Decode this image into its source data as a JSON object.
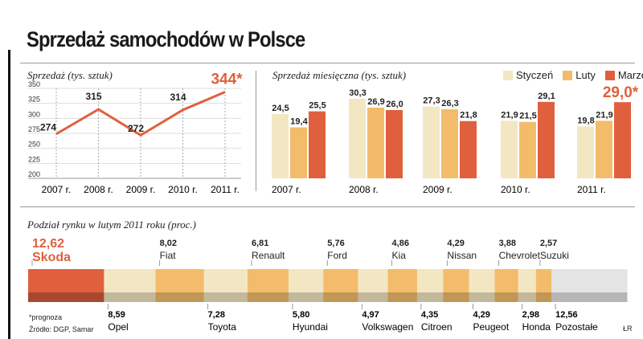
{
  "title": "Sprzedaż samochodów w Polsce",
  "colors": {
    "accent": "#e0603e",
    "orange": "#f3bc6a",
    "cream": "#f3e6c3",
    "gray": "#e4e4e4",
    "dark": "#222222"
  },
  "chart_data": [
    {
      "type": "line",
      "title": "Sprzedaż (tys. sztuk)",
      "categories": [
        "2007 r.",
        "2008 r.",
        "2009 r.",
        "2010 r.",
        "2011 r."
      ],
      "values": [
        274,
        315,
        272,
        314,
        344
      ],
      "labels": [
        "274",
        "315",
        "272",
        "314",
        "344*"
      ],
      "ylim": [
        200,
        350
      ],
      "yticks": [
        200,
        225,
        250,
        275,
        300,
        325,
        350
      ],
      "grid": true
    },
    {
      "type": "bar",
      "title": "Sprzedaż miesięczna (tys. sztuk)",
      "categories": [
        "2007 r.",
        "2008 r.",
        "2009 r.",
        "2010 r.",
        "2011 r."
      ],
      "legend": "top-right",
      "series": [
        {
          "name": "Styczeń",
          "color": "#f3e6c3",
          "values": [
            24.5,
            30.3,
            27.3,
            21.9,
            19.8
          ],
          "labels": [
            "24,5",
            "30,3",
            "27,3",
            "21,9",
            "19,8"
          ]
        },
        {
          "name": "Luty",
          "color": "#f3bc6a",
          "values": [
            19.4,
            26.9,
            26.3,
            21.5,
            21.9
          ],
          "labels": [
            "19,4",
            "26,9",
            "26,3",
            "21,5",
            "21,9"
          ]
        },
        {
          "name": "Marzec",
          "color": "#e0603e",
          "values": [
            25.5,
            26.0,
            21.8,
            29.1,
            29.0
          ],
          "labels": [
            "25,5",
            "26,0",
            "21,8",
            "29,1",
            "29,0*"
          ]
        }
      ]
    },
    {
      "type": "bar",
      "stacked": true,
      "title": "Podział rynku w lutym 2011 roku (proc.)",
      "segments": [
        {
          "name": "Skoda",
          "value": 12.62,
          "label": "12,62"
        },
        {
          "name": "Opel",
          "value": 8.59,
          "label": "8,59"
        },
        {
          "name": "Fiat",
          "value": 8.02,
          "label": "8,02"
        },
        {
          "name": "Toyota",
          "value": 7.28,
          "label": "7,28"
        },
        {
          "name": "Renault",
          "value": 6.81,
          "label": "6,81"
        },
        {
          "name": "Hyundai",
          "value": 5.8,
          "label": "5,80"
        },
        {
          "name": "Ford",
          "value": 5.76,
          "label": "5,76"
        },
        {
          "name": "Volkswagen",
          "value": 4.97,
          "label": "4,97"
        },
        {
          "name": "Kia",
          "value": 4.86,
          "label": "4,86"
        },
        {
          "name": "Citroen",
          "value": 4.35,
          "label": "4,35"
        },
        {
          "name": "Nissan",
          "value": 4.29,
          "label": "4,29"
        },
        {
          "name": "Peugeot",
          "value": 4.29,
          "label": "4,29"
        },
        {
          "name": "Chevrolet",
          "value": 3.88,
          "label": "3,88"
        },
        {
          "name": "Honda",
          "value": 2.98,
          "label": "2,98"
        },
        {
          "name": "Suzuki",
          "value": 2.57,
          "label": "2,57"
        },
        {
          "name": "Pozostałe",
          "value": 12.56,
          "label": "12,56"
        }
      ]
    }
  ],
  "footer": {
    "note": "*prognoza",
    "source": "Źródło: DGP, Samar",
    "credit": "ŁR"
  }
}
